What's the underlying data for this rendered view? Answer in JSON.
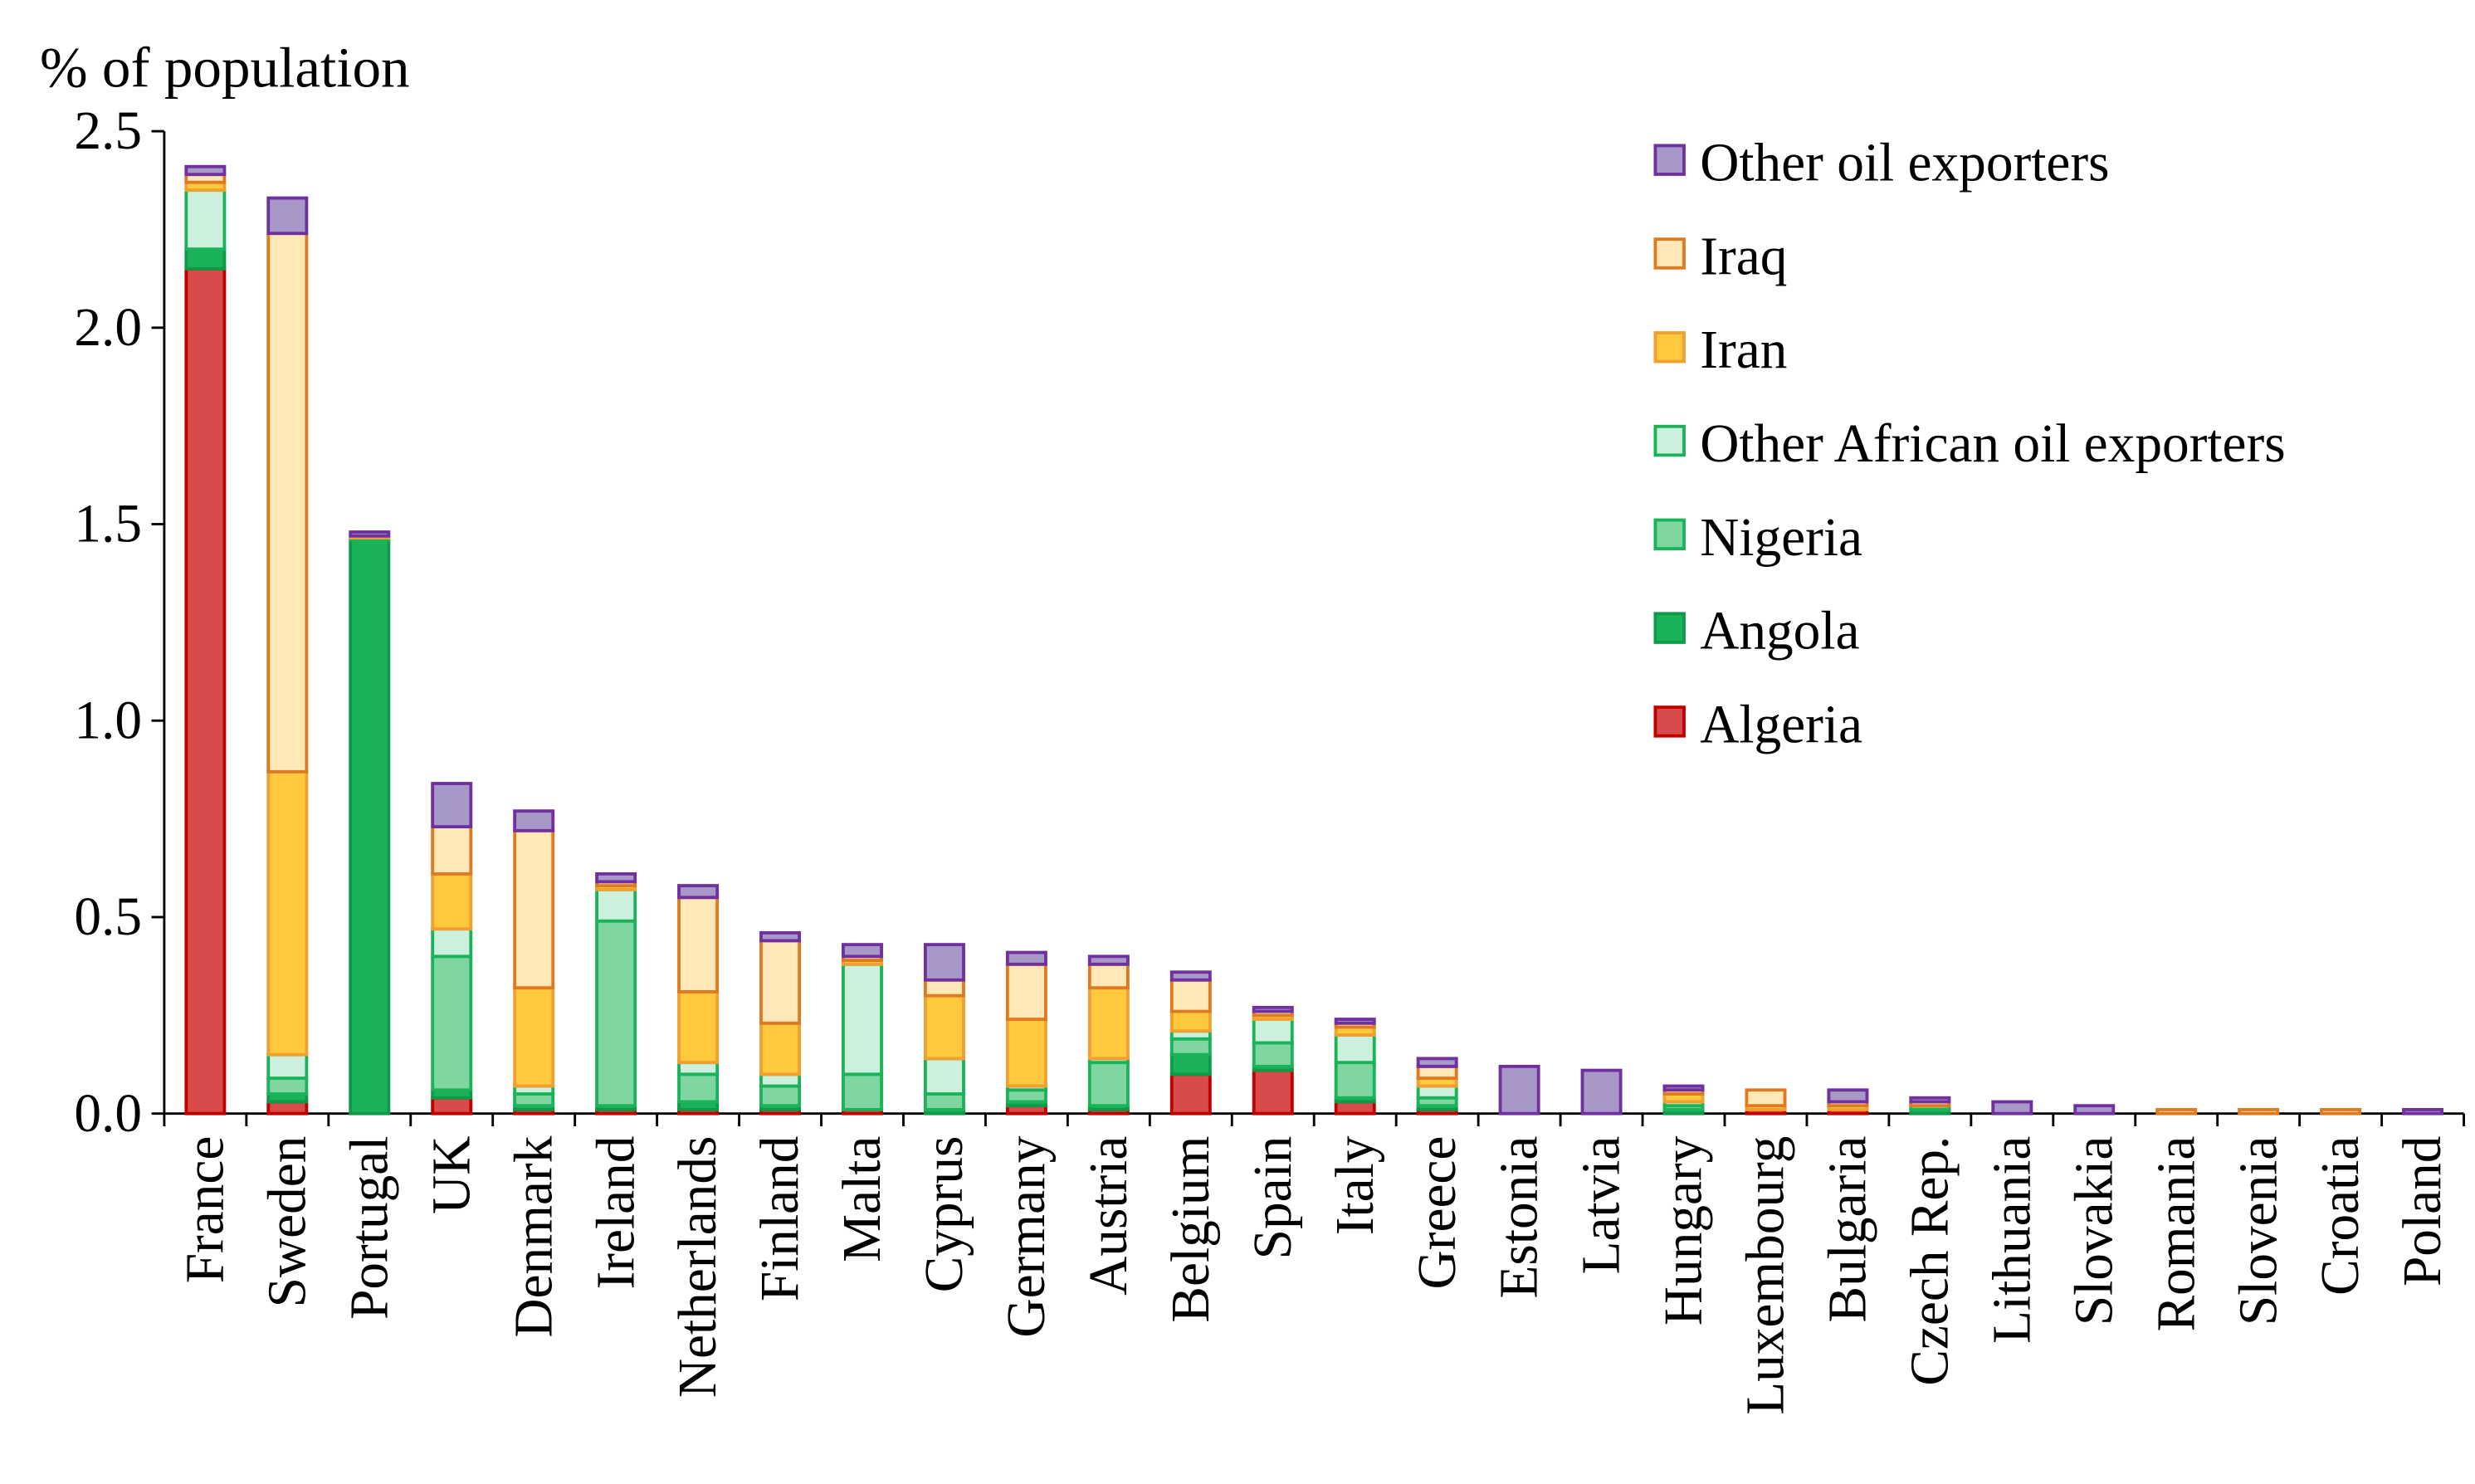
{
  "chart_data": {
    "type": "stacked_bar",
    "y_label": "% of population",
    "categories": [
      "France",
      "Sweden",
      "Portugal",
      "UK",
      "Denmark",
      "Ireland",
      "Netherlands",
      "Finland",
      "Malta",
      "Cyprus",
      "Germany",
      "Austria",
      "Belgium",
      "Spain",
      "Italy",
      "Greece",
      "Estonia",
      "Latvia",
      "Hungary",
      "Luxembourg",
      "Bulgaria",
      "Czech Rep.",
      "Lithuania",
      "Slovakia",
      "Romania",
      "Slovenia",
      "Croatia",
      "Poland"
    ],
    "series": [
      {
        "name": "Algeria",
        "color": "#d94a4a",
        "border_color": "#c00000",
        "values": [
          2.15,
          0.03,
          0,
          0.04,
          0.01,
          0.01,
          0.01,
          0.01,
          0.01,
          0,
          0.02,
          0.01,
          0.1,
          0.11,
          0.03,
          0.01,
          0,
          0,
          0,
          0.01,
          0.01,
          0,
          0,
          0,
          0,
          0,
          0,
          0
        ]
      },
      {
        "name": "Angola",
        "color": "#1bb35a",
        "border_color": "#0e9a47",
        "values": [
          0.05,
          0.02,
          1.46,
          0.02,
          0.01,
          0.01,
          0.02,
          0.01,
          0,
          0.01,
          0.01,
          0.01,
          0.05,
          0.01,
          0.01,
          0.01,
          0,
          0,
          0.01,
          0,
          0,
          0.01,
          0,
          0,
          0,
          0,
          0,
          0
        ]
      },
      {
        "name": "Nigeria",
        "color": "#7fd6a0",
        "border_color": "#1bb35a",
        "values": [
          0,
          0.04,
          0,
          0.34,
          0.03,
          0.47,
          0.07,
          0.05,
          0.09,
          0.04,
          0.03,
          0.11,
          0.04,
          0.06,
          0.09,
          0.02,
          0,
          0,
          0.01,
          0,
          0,
          0.01,
          0,
          0,
          0,
          0,
          0,
          0
        ]
      },
      {
        "name": "Other African oil exporters",
        "color": "#ccf0dc",
        "border_color": "#1bb35a",
        "values": [
          0.15,
          0.06,
          0.005,
          0.07,
          0.02,
          0.08,
          0.03,
          0.03,
          0.28,
          0.09,
          0.01,
          0.01,
          0.02,
          0.06,
          0.07,
          0.03,
          0,
          0,
          0.01,
          0,
          0,
          0,
          0,
          0,
          0,
          0,
          0,
          0
        ]
      },
      {
        "name": "Iran",
        "color": "#ffc83d",
        "border_color": "#f0a030",
        "values": [
          0.02,
          0.72,
          0.005,
          0.14,
          0.25,
          0.01,
          0.18,
          0.13,
          0.01,
          0.16,
          0.17,
          0.18,
          0.05,
          0.01,
          0.02,
          0.02,
          0,
          0,
          0.02,
          0.01,
          0.01,
          0,
          0,
          0,
          0,
          0,
          0,
          0
        ]
      },
      {
        "name": "Iraq",
        "color": "#ffe8b8",
        "border_color": "#e07a20",
        "values": [
          0.02,
          1.37,
          0,
          0.12,
          0.4,
          0.01,
          0.24,
          0.21,
          0.01,
          0.04,
          0.14,
          0.06,
          0.08,
          0.01,
          0.01,
          0.03,
          0,
          0,
          0.01,
          0.04,
          0.01,
          0.01,
          0,
          0,
          0.01,
          0.01,
          0.01,
          0
        ]
      },
      {
        "name": "Other oil exporters",
        "color": "#a898c8",
        "border_color": "#7030a0",
        "values": [
          0.02,
          0.09,
          0.01,
          0.11,
          0.05,
          0.02,
          0.03,
          0.02,
          0.03,
          0.09,
          0.03,
          0.02,
          0.02,
          0.01,
          0.01,
          0.02,
          0.12,
          0.11,
          0.01,
          0,
          0.03,
          0.01,
          0.03,
          0.02,
          0,
          0,
          0,
          0.01
        ]
      }
    ],
    "ylim": [
      0,
      2.5
    ],
    "yticks": [
      {
        "value": 0,
        "label": "0.0"
      },
      0.5,
      {
        "value": 1,
        "label": "1.0"
      },
      1.5,
      {
        "value": 2,
        "label": "2.0"
      },
      2.5
    ],
    "legend_position": "top-right",
    "legend_order": "reversed"
  }
}
